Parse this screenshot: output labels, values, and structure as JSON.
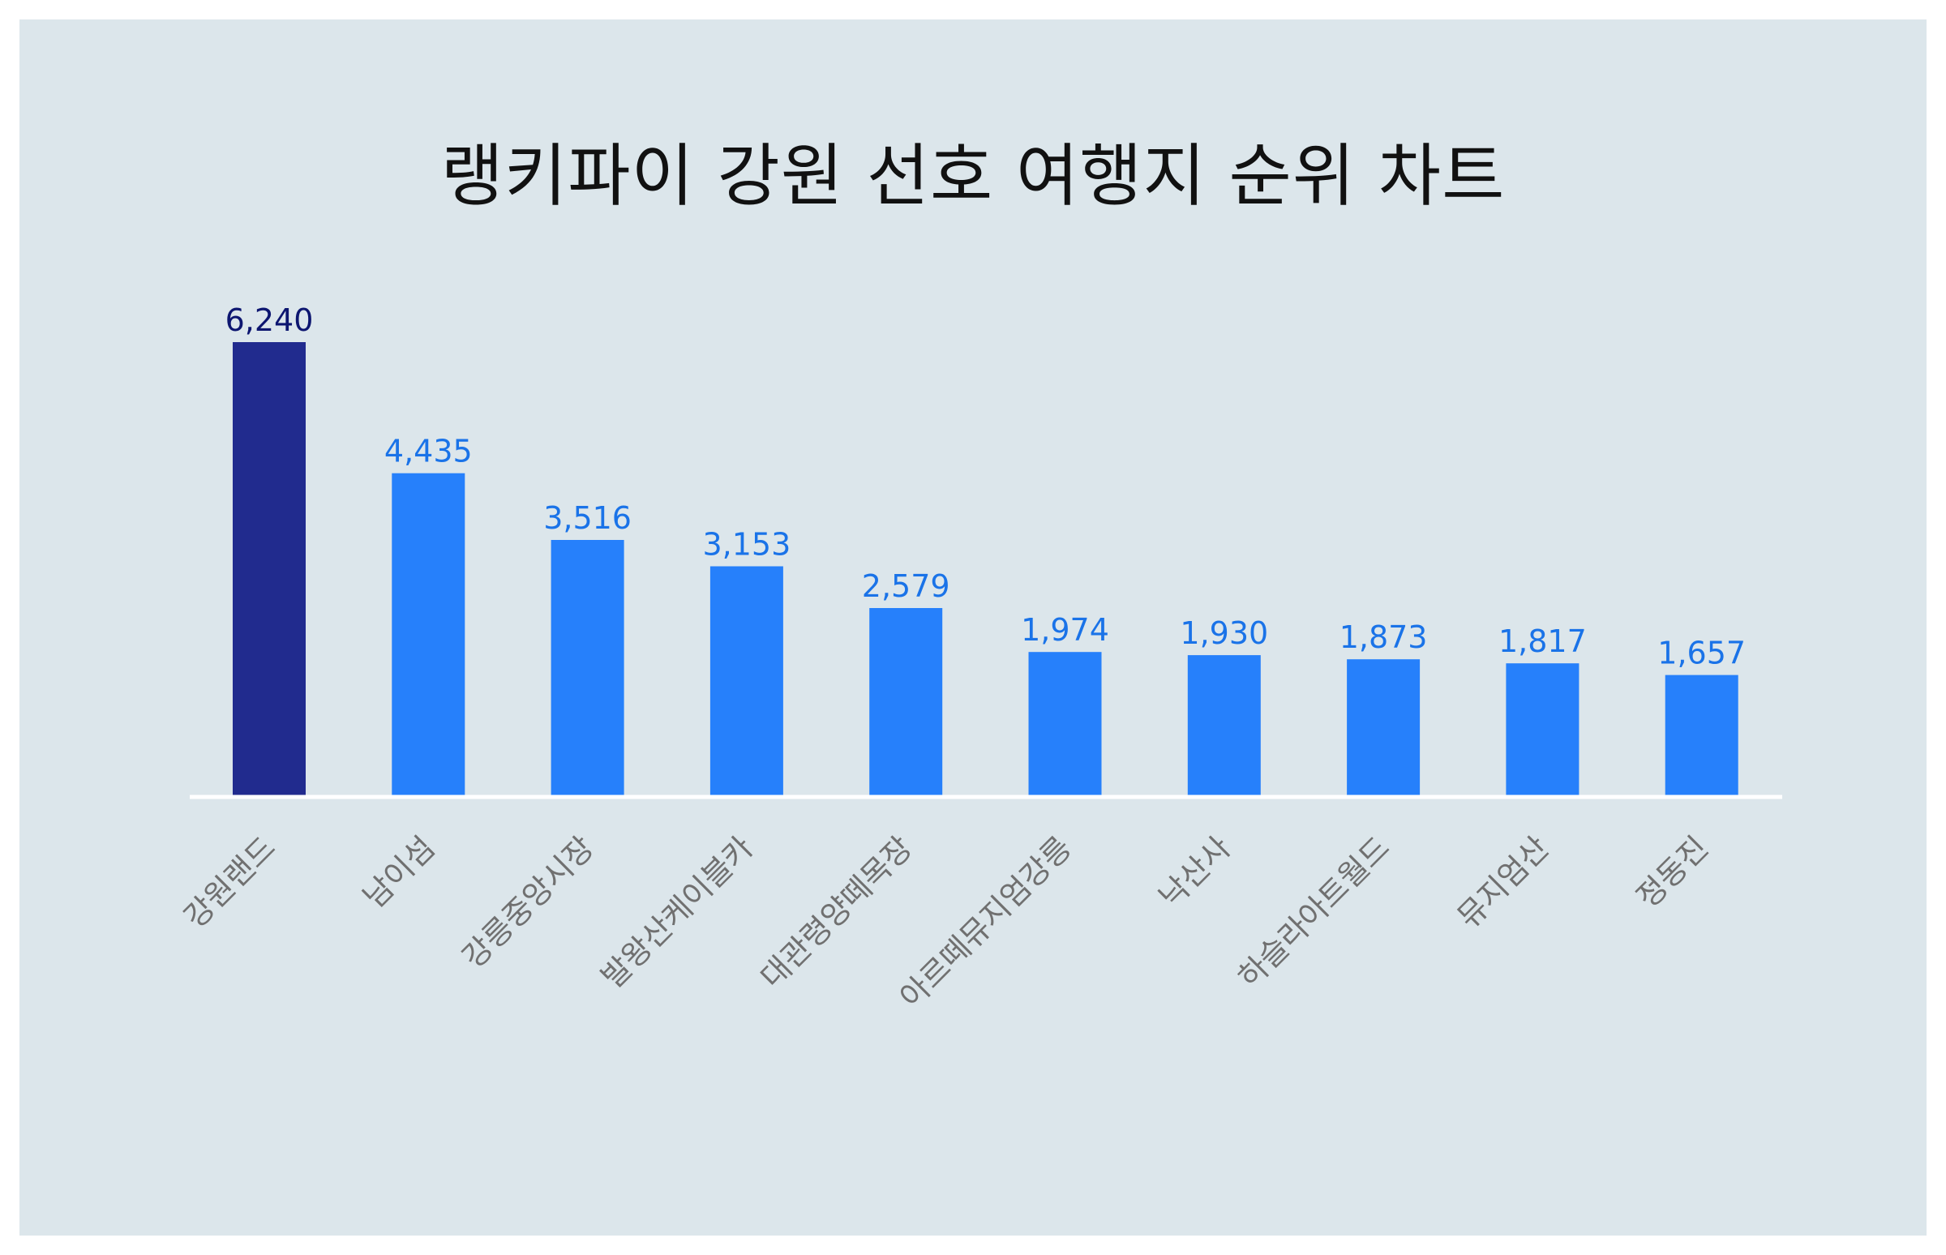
{
  "chart_data": {
    "type": "bar",
    "title": "랭키파이 강원 선호 여행지 순위 차트",
    "xlabel": "",
    "ylabel": "",
    "ylim": [
      0,
      6240
    ],
    "categories": [
      "강원랜드",
      "남이섬",
      "강릉중앙시장",
      "발왕산케이블카",
      "대관령양떼목장",
      "아르떼뮤지엄강릉",
      "낙산사",
      "하슬라아트월드",
      "뮤지엄산",
      "정동진"
    ],
    "values": [
      6240,
      4435,
      3516,
      3153,
      2579,
      1974,
      1930,
      1873,
      1817,
      1657
    ],
    "value_labels": [
      "6,240",
      "4,435",
      "3,516",
      "3,153",
      "2,579",
      "1,974",
      "1,930",
      "1,873",
      "1,817",
      "1,657"
    ],
    "grid": false,
    "legend": "none"
  },
  "colors": {
    "background": "#dce6eb",
    "highlight_bar": "#212b8e",
    "highlight_label": "#0d1670",
    "bar": "#2680fb",
    "bar_label": "#1a73e8",
    "baseline": "#ffffff",
    "category_text": "#707070"
  }
}
